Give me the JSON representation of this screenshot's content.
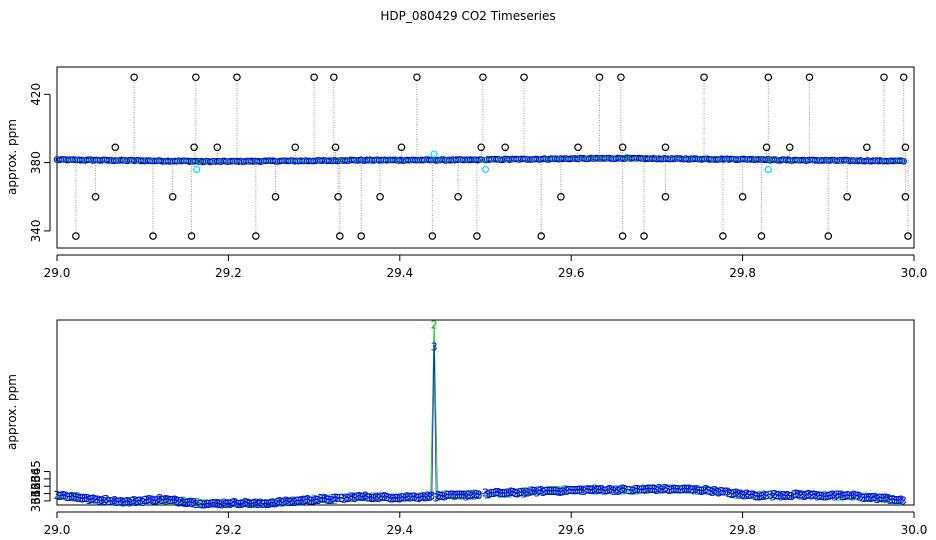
{
  "figure": {
    "title": "HDP_080429  CO2 Timeseries"
  },
  "colors": {
    "raw": "#000000",
    "series1": "#0000ff",
    "series2": "#00c000",
    "flagged": "#00e5ee",
    "spike_line": "#999999"
  },
  "chart_data": [
    {
      "type": "scatter",
      "ylabel": "approx. ppm",
      "xlim": [
        29.0,
        30.0
      ],
      "ylim": [
        330,
        436
      ],
      "x_ticks": [
        "29.0",
        "29.2",
        "29.4",
        "29.6",
        "29.8",
        "30.0"
      ],
      "y_ticks": [
        "340",
        "380",
        "420"
      ],
      "baseline_segments": [
        {
          "x": [
            29.0,
            29.165
          ],
          "y": [
            381.7,
            380.8
          ]
        },
        {
          "x": [
            29.166,
            29.33
          ],
          "y": [
            380.6,
            381.2
          ]
        },
        {
          "x": [
            29.332,
            29.495
          ],
          "y": [
            381.4,
            381.6
          ]
        },
        {
          "x": [
            29.5,
            29.665
          ],
          "y": [
            381.8,
            382.6
          ]
        },
        {
          "x": [
            29.667,
            29.83
          ],
          "y": [
            382.4,
            381.9
          ]
        },
        {
          "x": [
            29.832,
            29.988
          ],
          "y": [
            381.6,
            380.9
          ]
        }
      ],
      "spikes_high": [
        29.09,
        29.162,
        29.21,
        29.3,
        29.323,
        29.42,
        29.497,
        29.545,
        29.633,
        29.658,
        29.755,
        29.83,
        29.878,
        29.965,
        29.988
      ],
      "spikes_mid": [
        29.068,
        29.16,
        29.187,
        29.278,
        29.325,
        29.402,
        29.495,
        29.523,
        29.608,
        29.66,
        29.71,
        29.828,
        29.855,
        29.945,
        29.99
      ],
      "spikes_low": [
        29.045,
        29.135,
        29.255,
        29.328,
        29.377,
        29.468,
        29.588,
        29.71,
        29.8,
        29.922,
        29.99
      ],
      "spikes_bottom": [
        29.022,
        29.112,
        29.157,
        29.232,
        29.33,
        29.355,
        29.438,
        29.49,
        29.565,
        29.66,
        29.685,
        29.777,
        29.822,
        29.9,
        29.993
      ],
      "spike_levels": {
        "high": 430,
        "mid": 389,
        "low": 360,
        "bottom": 337
      },
      "flagged_points": [
        {
          "x": 29.163,
          "y": 376
        },
        {
          "x": 29.44,
          "y": 385
        },
        {
          "x": 29.5,
          "y": 376
        },
        {
          "x": 29.83,
          "y": 376
        }
      ]
    },
    {
      "type": "scatter",
      "ylabel": "approx. ppm",
      "xlim": [
        29.0,
        30.0
      ],
      "ylim": [
        360.45,
        385.6
      ],
      "x_ticks": [
        "29.0",
        "29.2",
        "29.4",
        "29.6",
        "29.8",
        "30.0"
      ],
      "y_ticks": [
        "361",
        "362",
        "363",
        "364",
        "365"
      ],
      "series": [
        {
          "marker": "3",
          "color": "#0000ff"
        },
        {
          "marker": "2",
          "color": "#00c000"
        }
      ],
      "curve_knots": [
        [
          29.0,
          361.8
        ],
        [
          29.02,
          361.6
        ],
        [
          29.04,
          361.2
        ],
        [
          29.06,
          361.1
        ],
        [
          29.08,
          360.9
        ],
        [
          29.1,
          361.05
        ],
        [
          29.12,
          361.25
        ],
        [
          29.14,
          361.0
        ],
        [
          29.16,
          360.8
        ],
        [
          29.18,
          360.6
        ],
        [
          29.2,
          360.7
        ],
        [
          29.22,
          360.75
        ],
        [
          29.24,
          360.6
        ],
        [
          29.26,
          360.85
        ],
        [
          29.28,
          361.0
        ],
        [
          29.3,
          361.2
        ],
        [
          29.33,
          361.3
        ],
        [
          29.35,
          361.6
        ],
        [
          29.38,
          361.5
        ],
        [
          29.4,
          361.5
        ],
        [
          29.43,
          361.6
        ],
        [
          29.45,
          361.7
        ],
        [
          29.48,
          361.8
        ],
        [
          29.5,
          362.0
        ],
        [
          29.53,
          362.1
        ],
        [
          29.56,
          362.3
        ],
        [
          29.6,
          362.45
        ],
        [
          29.64,
          362.55
        ],
        [
          29.67,
          362.5
        ],
        [
          29.7,
          362.65
        ],
        [
          29.73,
          362.6
        ],
        [
          29.76,
          362.45
        ],
        [
          29.78,
          362.2
        ],
        [
          29.8,
          361.9
        ],
        [
          29.82,
          361.75
        ],
        [
          29.84,
          361.8
        ],
        [
          29.87,
          361.85
        ],
        [
          29.9,
          361.7
        ],
        [
          29.93,
          361.75
        ],
        [
          29.95,
          361.45
        ],
        [
          29.97,
          361.35
        ],
        [
          29.988,
          361.0
        ]
      ],
      "peak_series2": {
        "x": 29.44,
        "y": 385.0
      },
      "peak_series1": {
        "x": 29.44,
        "y": 382.0
      }
    }
  ]
}
